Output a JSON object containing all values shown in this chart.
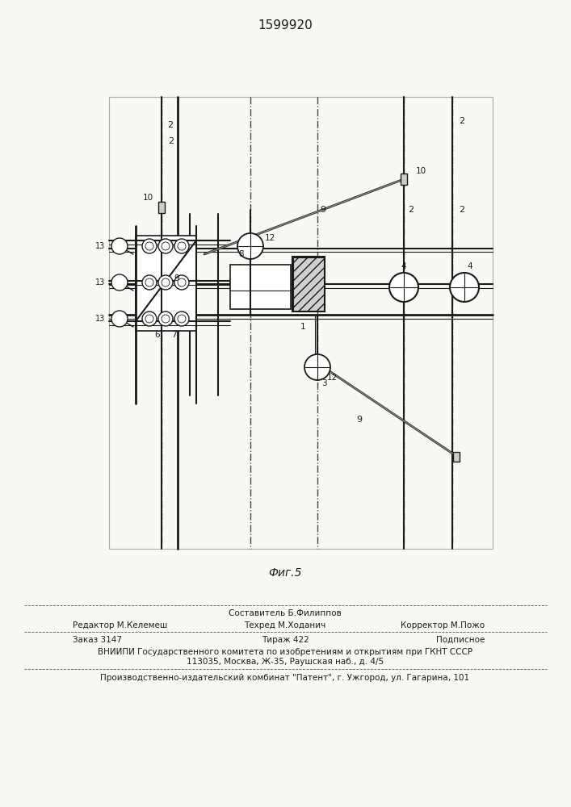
{
  "patent_number": "1599920",
  "figure_label": "Фиг.5",
  "bg_color": "#f8f8f5",
  "line_color": "#1a1a1a",
  "footer": {
    "line1_center_top": "Составитель Б.Филиппов",
    "line1_left": "Редактор М.Келемеш",
    "line1_center": "Техред М.Ходанич",
    "line1_right": "Корректор М.Пожо",
    "line2_left": "Заказ 3147",
    "line2_center": "Тираж 422",
    "line2_right": "Подписное",
    "line3": "ВНИИПИ Государственного комитета по изобретениям и открытиям при ГКНТ СССР",
    "line4": "113035, Москва, Ж-35, Раушская наб., д. 4/5",
    "line5": "Производственно-издательский комбинат \"Патент\", г. Ужгород, ул. Гагарина, 101"
  }
}
